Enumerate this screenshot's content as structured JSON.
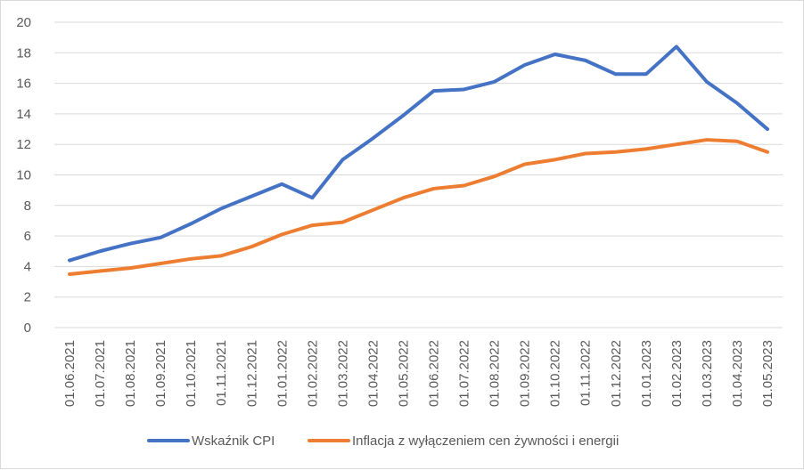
{
  "chart_data": {
    "type": "line",
    "title": "",
    "xlabel": "",
    "ylabel": "",
    "ylim": [
      0,
      20
    ],
    "yticks": [
      0,
      2,
      4,
      6,
      8,
      10,
      12,
      14,
      16,
      18,
      20
    ],
    "grid": "horizontal",
    "legend_position": "bottom",
    "categories": [
      "01.06.2021",
      "01.07.2021",
      "01.08.2021",
      "01.09.2021",
      "01.10.2021",
      "01.11.2021",
      "01.12.2021",
      "01.01.2022",
      "01.02.2022",
      "01.03.2022",
      "01.04.2022",
      "01.05.2022",
      "01.06.2022",
      "01.07.2022",
      "01.08.2022",
      "01.09.2022",
      "01.10.2022",
      "01.11.2022",
      "01.12.2022",
      "01.01.2023",
      "01.02.2023",
      "01.03.2023",
      "01.04.2023",
      "01.05.2023"
    ],
    "series": [
      {
        "name": "Wskaźnik CPI",
        "color": "#4472c4",
        "values": [
          4.4,
          5.0,
          5.5,
          5.9,
          6.8,
          7.8,
          8.6,
          9.4,
          8.5,
          11.0,
          12.4,
          13.9,
          15.5,
          15.6,
          16.1,
          17.2,
          17.9,
          17.5,
          16.6,
          16.6,
          18.4,
          16.1,
          14.7,
          13.0
        ]
      },
      {
        "name": "Inflacja z wyłączeniem cen żywności i energii",
        "color": "#ed7d31",
        "values": [
          3.5,
          3.7,
          3.9,
          4.2,
          4.5,
          4.7,
          5.3,
          6.1,
          6.7,
          6.9,
          7.7,
          8.5,
          9.1,
          9.3,
          9.9,
          10.7,
          11.0,
          11.4,
          11.5,
          11.7,
          12.0,
          12.3,
          12.2,
          11.5
        ]
      }
    ]
  }
}
